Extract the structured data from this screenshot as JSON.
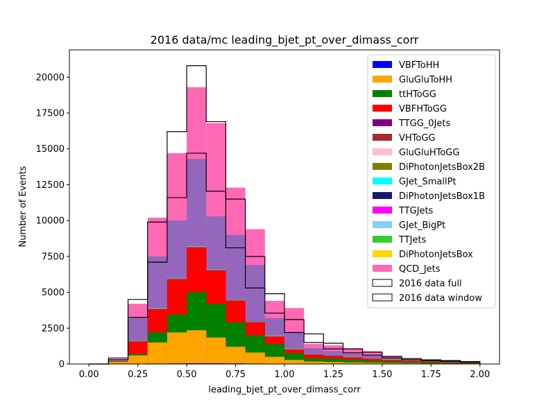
{
  "chart_data": {
    "type": "bar",
    "title": "2016 data/mc leading_bjet_pt_over_dimass_corr",
    "xlabel": "leading_bjet_pt_over_dimass_corr",
    "ylabel": "Number of Events",
    "xlim": [
      -0.1,
      2.1
    ],
    "ylim": [
      0,
      21900
    ],
    "xticks": [
      0.0,
      0.25,
      0.5,
      0.75,
      1.0,
      1.25,
      1.5,
      1.75,
      2.0
    ],
    "xtick_labels": [
      "0.00",
      "0.25",
      "0.50",
      "0.75",
      "1.00",
      "1.25",
      "1.50",
      "1.75",
      "2.00"
    ],
    "yticks": [
      0,
      2500,
      5000,
      7500,
      10000,
      12500,
      15000,
      17500,
      20000
    ],
    "ytick_labels": [
      "0",
      "2500",
      "5000",
      "7500",
      "10000",
      "12500",
      "15000",
      "17500",
      "20000"
    ],
    "grid": false,
    "legend_position": "top-right",
    "bin_edges": [
      0.0,
      0.1,
      0.2,
      0.3,
      0.4,
      0.5,
      0.6,
      0.7,
      0.8,
      0.9,
      1.0,
      1.1,
      1.2,
      1.3,
      1.4,
      1.5,
      1.6,
      1.7,
      1.8,
      1.9,
      2.0
    ],
    "stack_cumulative": true,
    "series": [
      {
        "name": "VBFToHH",
        "color": "#0000ff",
        "values": [
          0,
          10,
          20,
          30,
          40,
          50,
          50,
          40,
          30,
          25,
          20,
          15,
          12,
          10,
          8,
          6,
          5,
          4,
          3,
          2
        ]
      },
      {
        "name": "GluGluToHH",
        "color": "#ffa500",
        "values": [
          0,
          150,
          600,
          1500,
          2200,
          2350,
          1850,
          1200,
          800,
          500,
          280,
          170,
          140,
          110,
          90,
          70,
          60,
          40,
          30,
          20
        ]
      },
      {
        "name": "ttHToGG",
        "color": "#008000",
        "values": [
          0,
          150,
          700,
          2200,
          3450,
          5000,
          4200,
          2900,
          2000,
          1400,
          750,
          400,
          380,
          300,
          240,
          180,
          140,
          110,
          80,
          60
        ]
      },
      {
        "name": "VBFHToGG",
        "color": "#ff0000",
        "values": [
          0,
          180,
          1550,
          3800,
          5900,
          8100,
          6500,
          4400,
          2900,
          1900,
          1000,
          650,
          560,
          450,
          360,
          280,
          210,
          170,
          120,
          80
        ]
      },
      {
        "name": "TTGG_0Jets",
        "color": "#800080",
        "values": [
          0,
          185,
          1560,
          3810,
          5910,
          8110,
          6510,
          4410,
          2910,
          1910,
          1010,
          655,
          565,
          455,
          365,
          285,
          212,
          172,
          122,
          82
        ]
      },
      {
        "name": "VHToGG",
        "color": "#a52a2a",
        "values": [
          0,
          190,
          1570,
          3820,
          5920,
          8120,
          6520,
          4420,
          2920,
          1920,
          1015,
          660,
          570,
          460,
          370,
          290,
          214,
          174,
          124,
          84
        ]
      },
      {
        "name": "GluGluHToGG",
        "color": "#ffc0cb",
        "values": [
          0,
          195,
          1580,
          3830,
          5930,
          8130,
          6530,
          4430,
          2930,
          1930,
          1020,
          665,
          575,
          465,
          375,
          295,
          216,
          176,
          126,
          86
        ]
      },
      {
        "name": "DiPhotonJetsBox2B",
        "color": "#808000",
        "values": [
          0,
          200,
          1590,
          3840,
          5940,
          8140,
          6540,
          4440,
          2940,
          1940,
          1025,
          670,
          580,
          470,
          380,
          300,
          218,
          178,
          128,
          88
        ]
      },
      {
        "name": "GJet_SmallPt",
        "color": "#00ffff",
        "values": [
          0,
          205,
          1600,
          3850,
          5950,
          8150,
          6550,
          4450,
          2950,
          1950,
          1030,
          675,
          585,
          475,
          385,
          305,
          220,
          180,
          130,
          90
        ]
      },
      {
        "name": "DiPhotonJetsBox1B",
        "color": "#191970",
        "values": [
          0,
          210,
          1610,
          3860,
          5960,
          8160,
          6560,
          4460,
          2960,
          1960,
          1035,
          680,
          590,
          480,
          390,
          310,
          222,
          182,
          132,
          92
        ]
      },
      {
        "name": "TTGJets",
        "color": "#ff00ff",
        "values": [
          0,
          215,
          1620,
          3870,
          5970,
          8170,
          6570,
          4470,
          2970,
          1970,
          1040,
          685,
          595,
          485,
          395,
          315,
          224,
          184,
          134,
          94
        ]
      },
      {
        "name": "GJet_BigPt",
        "color": "#87cefa",
        "values": [
          0,
          220,
          1630,
          3880,
          5980,
          8180,
          6580,
          4480,
          2980,
          1980,
          1045,
          690,
          600,
          490,
          400,
          320,
          226,
          186,
          136,
          96
        ]
      },
      {
        "name": "TTJets",
        "color": "#32cd32",
        "values": [
          0,
          225,
          1640,
          3890,
          5990,
          8190,
          6590,
          4490,
          2990,
          1990,
          1050,
          695,
          605,
          495,
          405,
          325,
          228,
          188,
          138,
          98
        ]
      },
      {
        "name": "DiPhotonJetsBox",
        "color": "#ffd700",
        "values": [
          0,
          230,
          1650,
          3900,
          6000,
          8200,
          6600,
          4500,
          3000,
          2000,
          1055,
          700,
          610,
          500,
          410,
          330,
          230,
          190,
          140,
          100
        ]
      },
      {
        "name": "QCD_Jets",
        "color": "#9467bd",
        "values": [
          0,
          280,
          3200,
          7500,
          10000,
          14300,
          10300,
          9000,
          6900,
          3200,
          2200,
          1100,
          900,
          700,
          600,
          410,
          260,
          220,
          160,
          110
        ]
      },
      {
        "name": "QCD_Jets",
        "color": "#ff69b4",
        "values": [
          0,
          360,
          4200,
          10200,
          14700,
          19300,
          16800,
          12300,
          9400,
          4400,
          3900,
          1400,
          1300,
          1100,
          900,
          550,
          330,
          270,
          210,
          140
        ]
      }
    ],
    "data_series": [
      {
        "name": "2016 data full",
        "values": [
          0,
          420,
          4500,
          9900,
          16200,
          20800,
          16900,
          11500,
          7500,
          4900,
          3100,
          2100,
          1450,
          1050,
          820,
          530,
          380,
          290,
          240,
          170
        ]
      },
      {
        "name": "2016 data window",
        "values": [
          0,
          300,
          3250,
          7100,
          11600,
          14700,
          12050,
          8100,
          5300,
          3550,
          2200,
          1500,
          1050,
          780,
          620,
          420,
          300,
          230,
          180,
          130
        ]
      }
    ],
    "legend": [
      "VBFToHH",
      "GluGluToHH",
      "ttHToGG",
      "VBFHToGG",
      "TTGG_0Jets",
      "VHToGG",
      "GluGluHToGG",
      "DiPhotonJetsBox2B",
      "GJet_SmallPt",
      "DiPhotonJetsBox1B",
      "TTGJets",
      "GJet_BigPt",
      "TTJets",
      "DiPhotonJetsBox",
      "QCD_Jets",
      "2016 data full",
      "2016 data window"
    ],
    "legend_colors": [
      "#0000ff",
      "#ffa500",
      "#008000",
      "#ff0000",
      "#800080",
      "#a52a2a",
      "#ffc0cb",
      "#808000",
      "#00ffff",
      "#191970",
      "#ff00ff",
      "#87cefa",
      "#32cd32",
      "#ffd700",
      "#ff69b4",
      "#ffffff",
      "#ffffff"
    ]
  }
}
